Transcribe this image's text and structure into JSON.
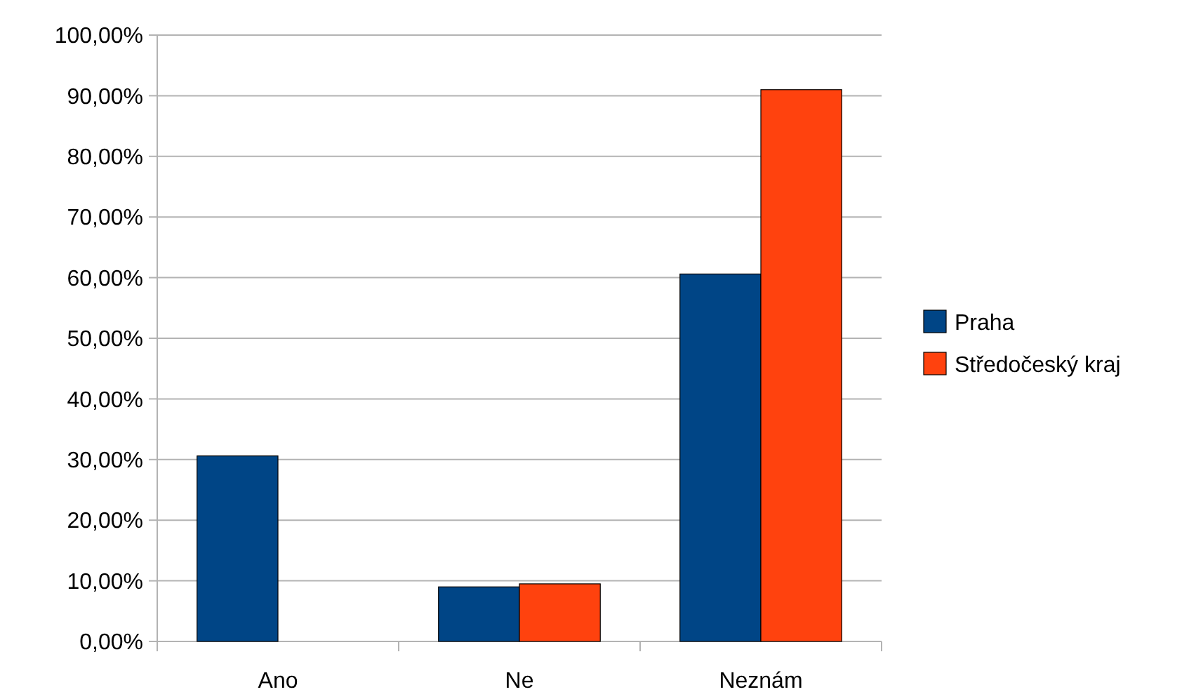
{
  "chart_data": {
    "type": "bar",
    "categories": [
      "Ano",
      "Ne",
      "Neznám"
    ],
    "series": [
      {
        "name": "Praha",
        "color": "#004586",
        "values": [
          30.6,
          9.0,
          60.6
        ]
      },
      {
        "name": "Středočeský kraj",
        "color": "#ff420e",
        "values": [
          0,
          9.5,
          91.0
        ]
      }
    ],
    "ylim": [
      0,
      100
    ],
    "yticks": [
      {
        "value": 0,
        "label": "0,00%"
      },
      {
        "value": 10,
        "label": "10,00%"
      },
      {
        "value": 20,
        "label": "20,00%"
      },
      {
        "value": 30,
        "label": "30,00%"
      },
      {
        "value": 40,
        "label": "40,00%"
      },
      {
        "value": 50,
        "label": "50,00%"
      },
      {
        "value": 60,
        "label": "60,00%"
      },
      {
        "value": 70,
        "label": "70,00%"
      },
      {
        "value": 80,
        "label": "80,00%"
      },
      {
        "value": 90,
        "label": "90,00%"
      },
      {
        "value": 100,
        "label": "100,00%"
      }
    ],
    "grid": "y",
    "legend": "right"
  }
}
